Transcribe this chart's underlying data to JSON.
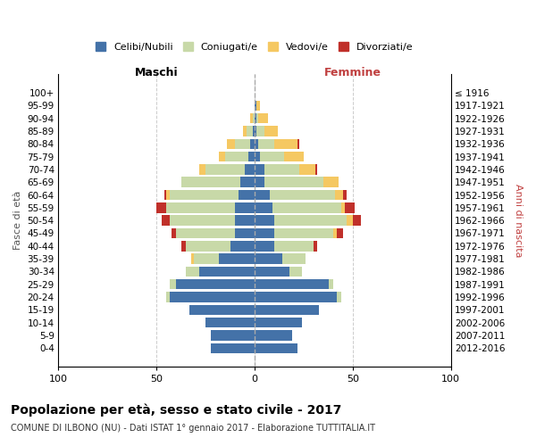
{
  "age_groups": [
    "0-4",
    "5-9",
    "10-14",
    "15-19",
    "20-24",
    "25-29",
    "30-34",
    "35-39",
    "40-44",
    "45-49",
    "50-54",
    "55-59",
    "60-64",
    "65-69",
    "70-74",
    "75-79",
    "80-84",
    "85-89",
    "90-94",
    "95-99",
    "100+"
  ],
  "birth_years": [
    "2012-2016",
    "2007-2011",
    "2002-2006",
    "1997-2001",
    "1992-1996",
    "1987-1991",
    "1982-1986",
    "1977-1981",
    "1972-1976",
    "1967-1971",
    "1962-1966",
    "1957-1961",
    "1952-1956",
    "1947-1951",
    "1942-1946",
    "1937-1941",
    "1932-1936",
    "1927-1931",
    "1922-1926",
    "1917-1921",
    "≤ 1916"
  ],
  "maschi": {
    "celibi": [
      22,
      22,
      25,
      33,
      43,
      40,
      28,
      18,
      12,
      10,
      10,
      10,
      8,
      7,
      5,
      3,
      2,
      1,
      0,
      0,
      0
    ],
    "coniugati": [
      0,
      0,
      0,
      0,
      2,
      3,
      7,
      13,
      23,
      30,
      33,
      35,
      35,
      30,
      20,
      12,
      8,
      3,
      1,
      0,
      0
    ],
    "vedovi": [
      0,
      0,
      0,
      0,
      0,
      0,
      0,
      1,
      0,
      0,
      0,
      0,
      2,
      0,
      3,
      3,
      4,
      2,
      1,
      0,
      0
    ],
    "divorziati": [
      0,
      0,
      0,
      0,
      0,
      0,
      0,
      0,
      2,
      2,
      4,
      5,
      1,
      0,
      0,
      0,
      0,
      0,
      0,
      0,
      0
    ]
  },
  "femmine": {
    "nubili": [
      22,
      19,
      24,
      33,
      42,
      38,
      18,
      14,
      10,
      10,
      10,
      9,
      8,
      5,
      5,
      3,
      2,
      1,
      1,
      1,
      0
    ],
    "coniugate": [
      0,
      0,
      0,
      0,
      2,
      2,
      6,
      12,
      20,
      30,
      37,
      35,
      33,
      30,
      18,
      12,
      8,
      4,
      1,
      0,
      0
    ],
    "vedove": [
      0,
      0,
      0,
      0,
      0,
      0,
      0,
      0,
      0,
      2,
      3,
      2,
      4,
      8,
      8,
      10,
      12,
      7,
      5,
      2,
      0
    ],
    "divorziate": [
      0,
      0,
      0,
      0,
      0,
      0,
      0,
      0,
      2,
      3,
      4,
      5,
      2,
      0,
      1,
      0,
      1,
      0,
      0,
      0,
      0
    ]
  },
  "colors": {
    "celibi": "#4472a8",
    "coniugati": "#c8d9a8",
    "vedovi": "#f5c862",
    "divorziati": "#c0302a"
  },
  "title": "Popolazione per età, sesso e stato civile - 2017",
  "subtitle": "COMUNE DI ILBONO (NU) - Dati ISTAT 1° gennaio 2017 - Elaborazione TUTTITALIA.IT",
  "xlabel_left": "Maschi",
  "xlabel_right": "Femmine",
  "ylabel_left": "Fasce di età",
  "ylabel_right": "Anni di nascita",
  "xlim": 100,
  "background_color": "#ffffff",
  "grid_color": "#cccccc"
}
